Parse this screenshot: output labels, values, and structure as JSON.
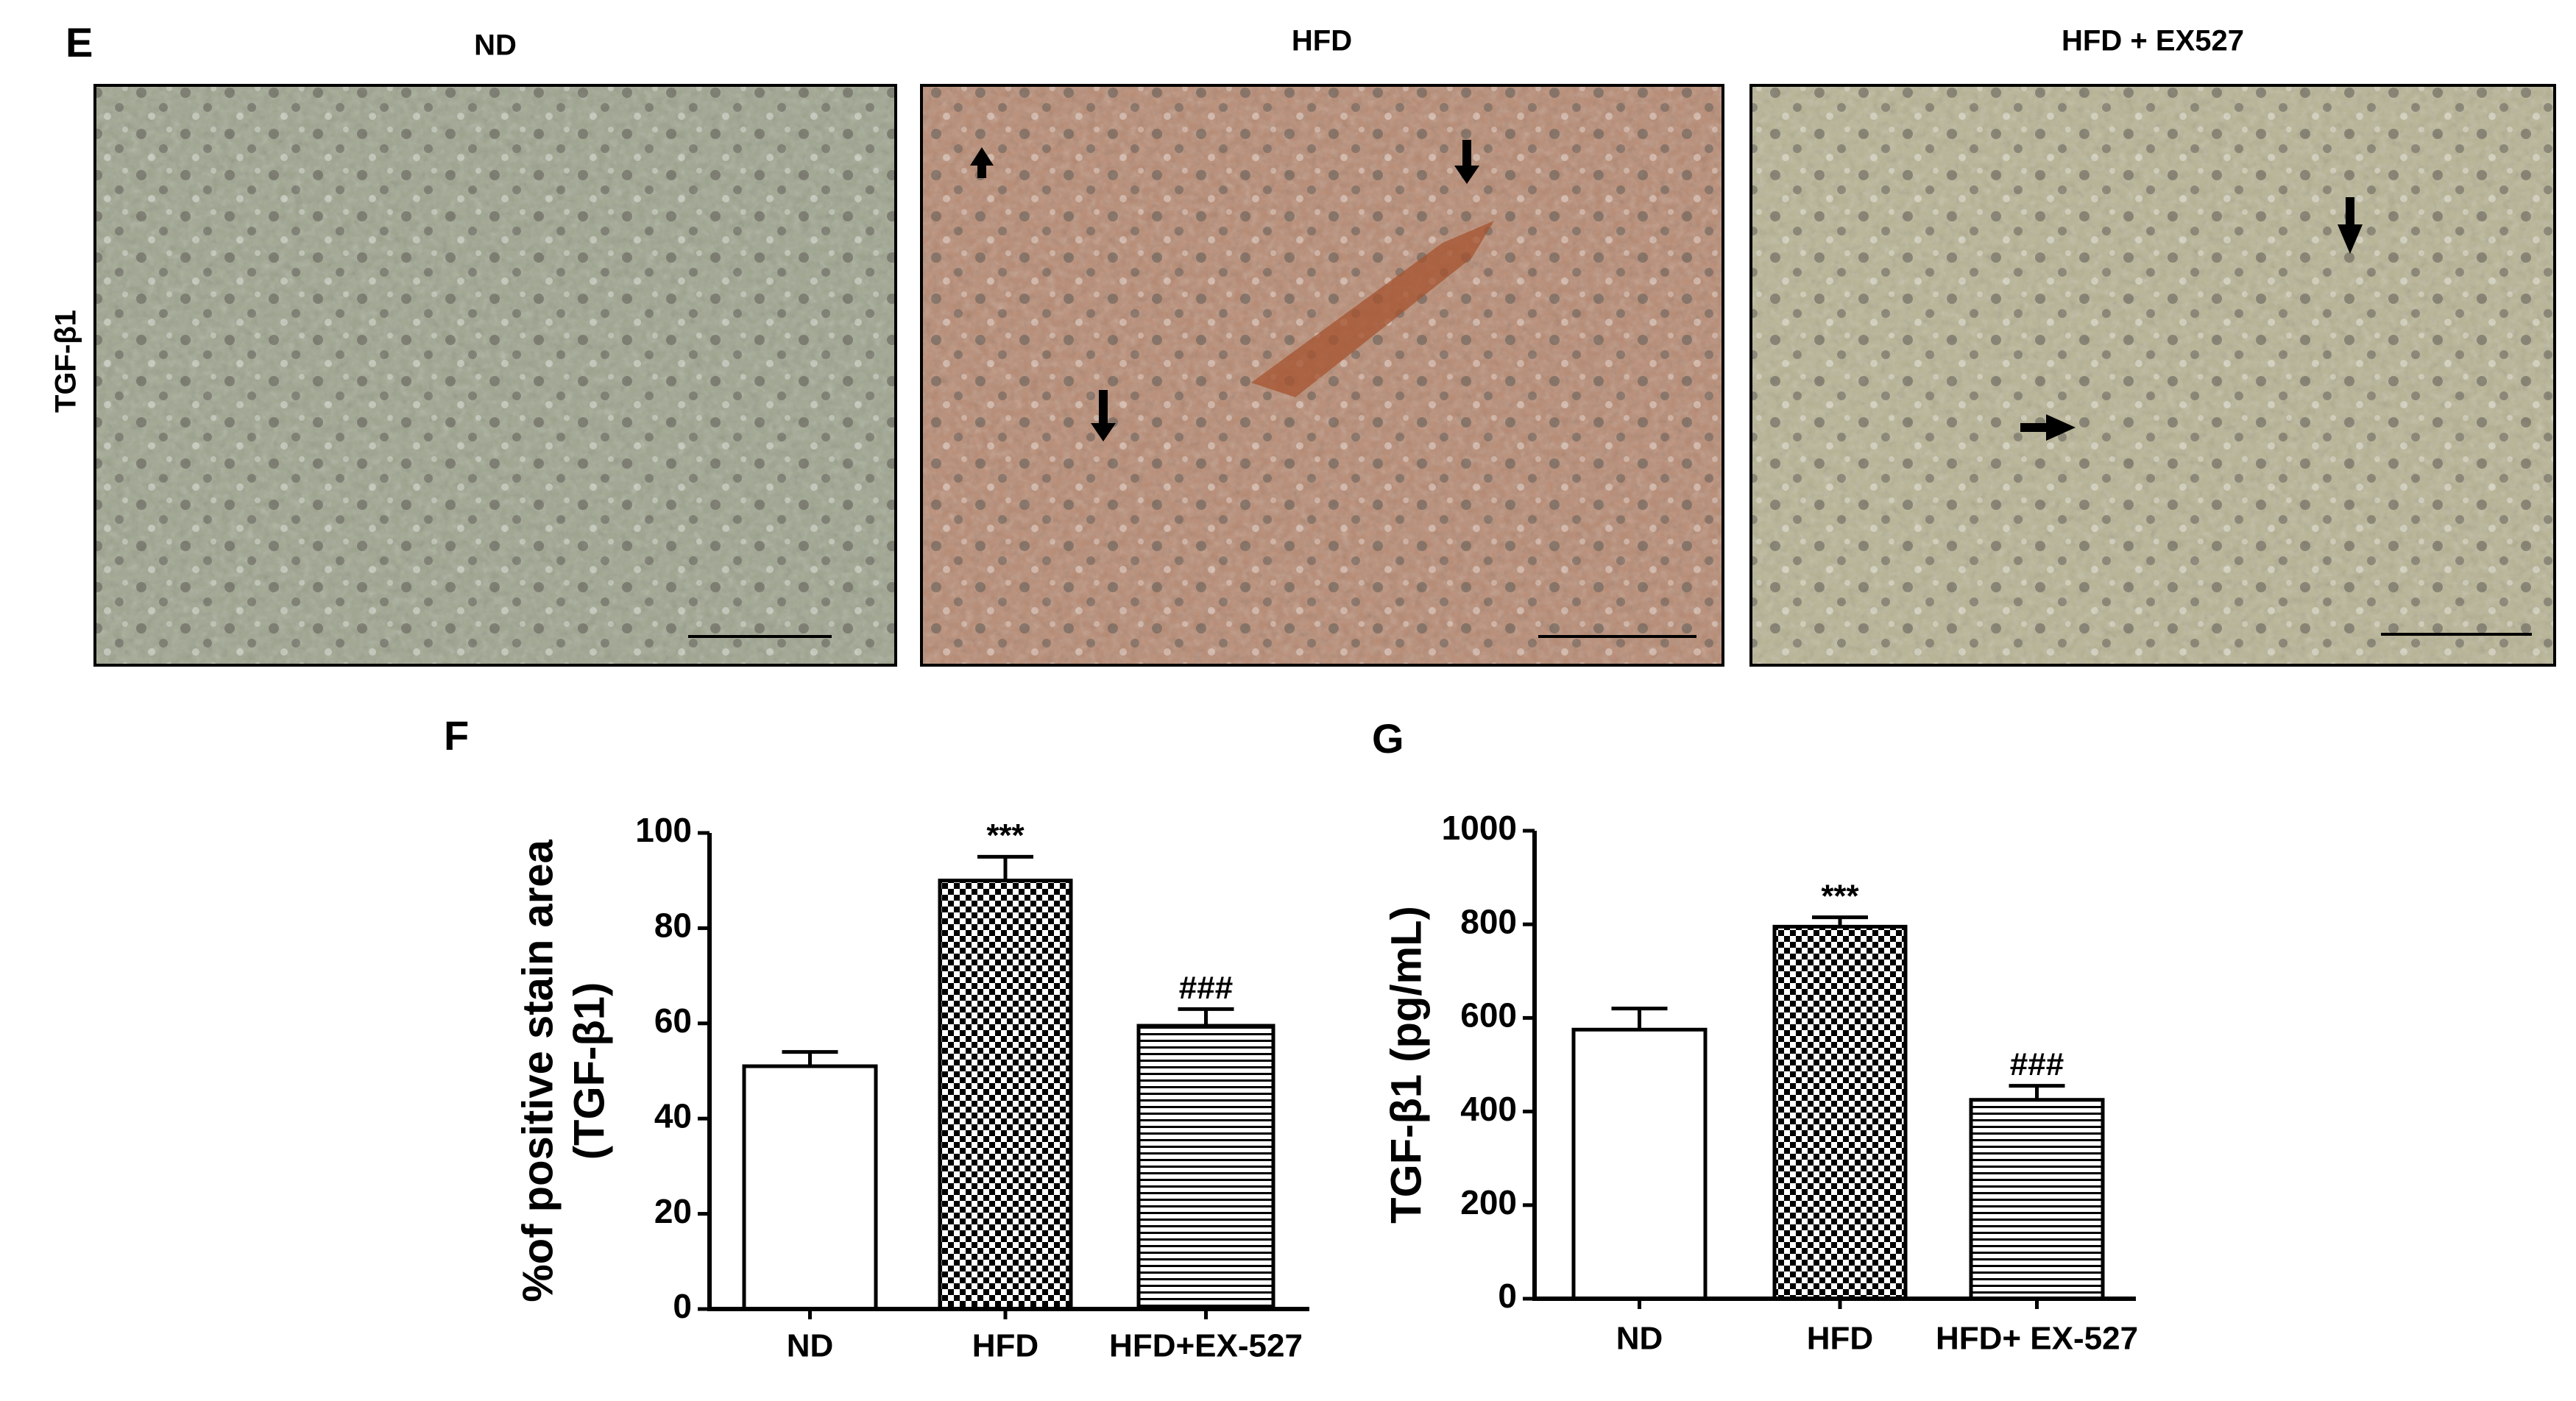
{
  "panel_labels": [
    "E",
    "F",
    "G"
  ],
  "image_titles": [
    "ND",
    "HFD",
    "HFD + EX527"
  ],
  "row_label": "TGF-β1",
  "chart_data": [
    {
      "type": "bar",
      "ylabel": [
        "%of positive stain area",
        "(TGF-β1)"
      ],
      "categories": [
        "ND",
        "HFD",
        "HFD+EX-527"
      ],
      "values": [
        51,
        90,
        59.5
      ],
      "errors": [
        3,
        5,
        3.5
      ],
      "annotations": [
        null,
        "***",
        "###"
      ],
      "patterns": [
        "solid",
        "checker",
        "hstripes"
      ],
      "ylim": [
        0,
        100
      ],
      "yticks": [
        0,
        20,
        40,
        60,
        80,
        100
      ]
    },
    {
      "type": "bar",
      "ylabel": [
        "TGF-β1 (pg/mL)"
      ],
      "categories": [
        "ND",
        "HFD",
        "HFD+ EX-527"
      ],
      "values": [
        575,
        795,
        425
      ],
      "errors": [
        45,
        20,
        30
      ],
      "annotations": [
        null,
        "***",
        "###"
      ],
      "patterns": [
        "solid",
        "checker",
        "hstripes"
      ],
      "ylim": [
        0,
        1000
      ],
      "yticks": [
        0,
        200,
        400,
        600,
        800,
        1000
      ]
    }
  ]
}
